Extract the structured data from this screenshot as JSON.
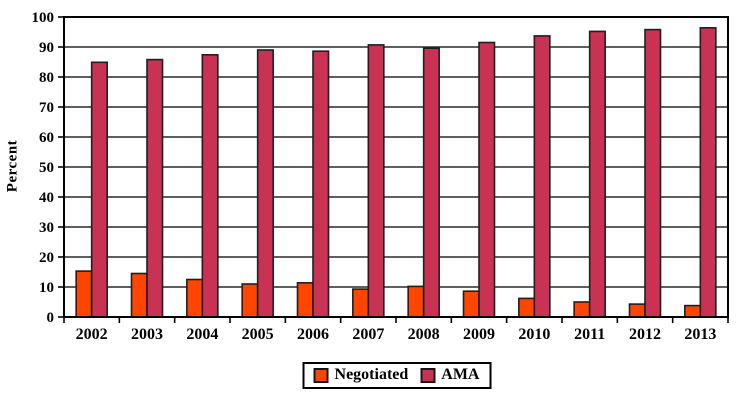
{
  "chart_data": {
    "type": "bar",
    "title": "",
    "xlabel": "",
    "ylabel": "Percent",
    "categories": [
      "2002",
      "2003",
      "2004",
      "2005",
      "2006",
      "2007",
      "2008",
      "2009",
      "2010",
      "2011",
      "2012",
      "2013"
    ],
    "series": [
      {
        "name": "Negotiated",
        "color": "#FF4500",
        "values": [
          15.3,
          14.5,
          12.5,
          11.0,
          11.4,
          9.3,
          10.2,
          8.6,
          6.2,
          5.0,
          4.3,
          3.8
        ]
      },
      {
        "name": "AMA",
        "color": "#C93252",
        "values": [
          84.9,
          85.8,
          87.4,
          89.0,
          88.6,
          90.7,
          89.6,
          91.5,
          93.7,
          95.2,
          95.8,
          96.4
        ]
      }
    ],
    "ylim": [
      0,
      100
    ],
    "ytick_step": 10,
    "ytick_labels": [
      "0",
      "10",
      "20",
      "30",
      "40",
      "50",
      "60",
      "70",
      "80",
      "90",
      "100"
    ],
    "grid": "horizontal",
    "legend_position": "bottom",
    "colors": {
      "bar_border": "#1f1f1f",
      "axis": "#000000",
      "gridline": "#2a2a2a",
      "background": "#ffffff",
      "text": "#000000"
    }
  }
}
